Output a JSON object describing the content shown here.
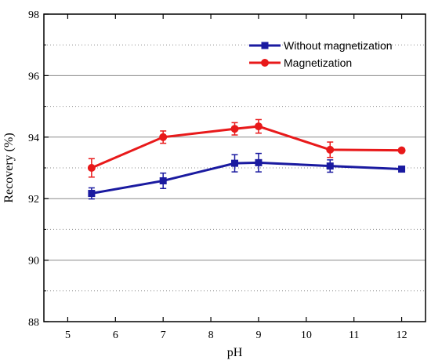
{
  "chart_data": {
    "type": "line",
    "xlabel": "pH",
    "ylabel": "Recovery (%)",
    "xlim": [
      4.5,
      12.5
    ],
    "ylim": [
      88,
      98
    ],
    "x_ticks": [
      5,
      6,
      7,
      8,
      9,
      10,
      11,
      12
    ],
    "y_ticks": [
      88,
      90,
      92,
      94,
      96,
      98
    ],
    "grid": "horizontal (solid at major ticks, dotted at minor)",
    "legend_position": "top-right",
    "series": [
      {
        "name": "Without magnetization",
        "color": "#1a1aa0",
        "marker": "square",
        "x": [
          5.5,
          7,
          8.5,
          9,
          10.5,
          12
        ],
        "y": [
          92.17,
          92.58,
          93.15,
          93.17,
          93.06,
          92.96
        ],
        "error": [
          0.18,
          0.25,
          0.28,
          0.3,
          0.2,
          0.08
        ]
      },
      {
        "name": "Magnetization",
        "color": "#e8191a",
        "marker": "circle",
        "x": [
          5.5,
          7,
          8.5,
          9,
          10.5,
          12
        ],
        "y": [
          93.0,
          94.0,
          94.27,
          94.35,
          93.59,
          93.57
        ],
        "error": [
          0.3,
          0.2,
          0.2,
          0.22,
          0.25,
          0.0
        ]
      }
    ]
  }
}
